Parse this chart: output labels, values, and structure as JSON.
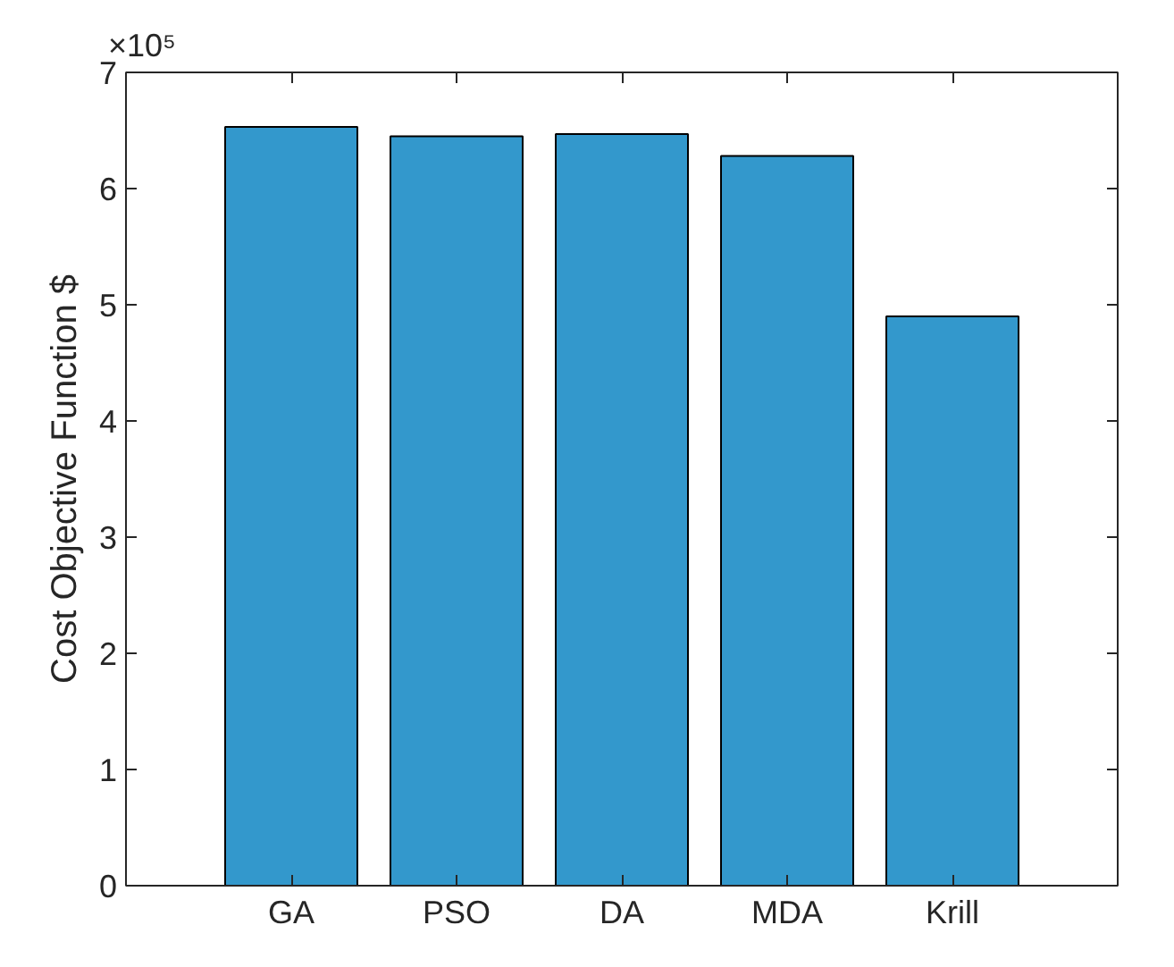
{
  "chart_data": {
    "type": "bar",
    "ylabel": "Cost Objective Function $",
    "categories": [
      "GA",
      "PSO",
      "DA",
      "MDA",
      "Krill"
    ],
    "values": [
      6.53,
      6.45,
      6.47,
      6.28,
      4.9
    ],
    "color": "#3398cc",
    "ylim": [
      0,
      7
    ],
    "yticks": [
      0,
      1,
      2,
      3,
      4,
      5,
      6,
      7
    ],
    "annotations": [
      "×10⁵"
    ],
    "grid": false
  }
}
